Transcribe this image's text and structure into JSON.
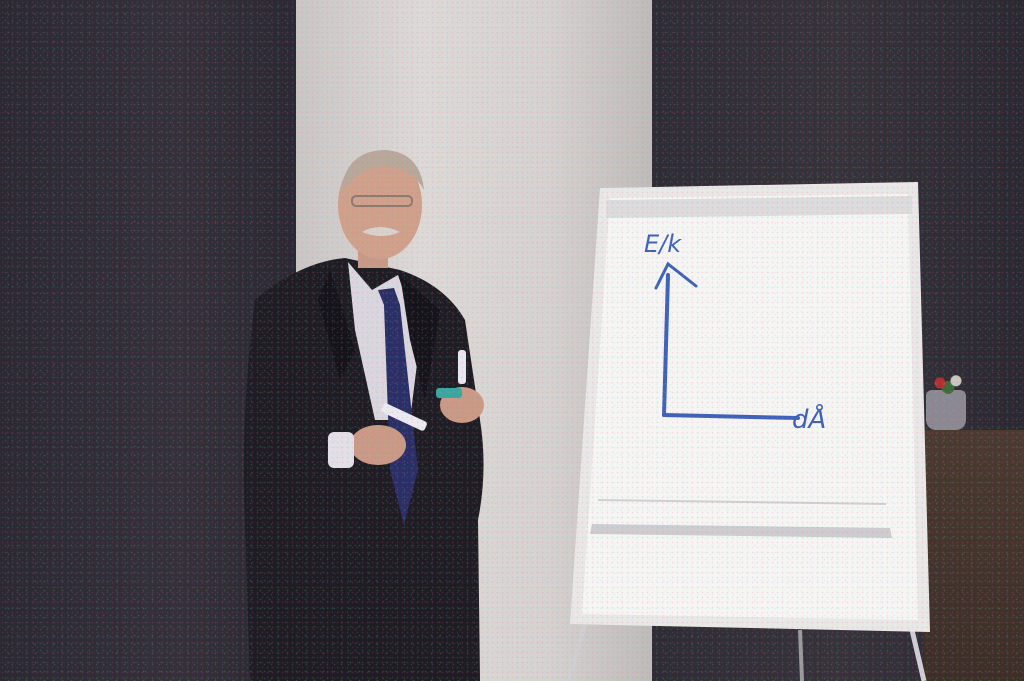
{
  "scene": {
    "description_label": "",
    "whiteboard": {
      "y_axis_label": "E/k",
      "x_axis_label": "dÅ"
    },
    "colors": {
      "marker_blue": "#3d62b8",
      "suit": "#1e1c22",
      "board": "#f4f4f2",
      "wall": "#d6d3d0",
      "curtain": "#2d2a33"
    }
  }
}
